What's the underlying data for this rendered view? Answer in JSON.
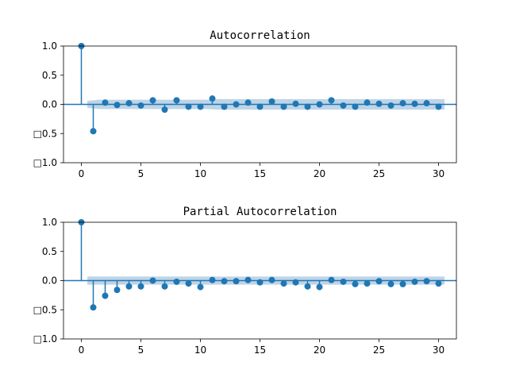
{
  "chart_data": [
    {
      "type": "scatter",
      "style": "stem",
      "title": "Autocorrelation",
      "xlim": [
        -1.5,
        31.5
      ],
      "ylim": [
        -1.0,
        1.0
      ],
      "x_ticks": [
        0,
        5,
        10,
        15,
        20,
        25,
        30
      ],
      "y_ticks": [
        1.0,
        0.5,
        0.0,
        -0.5,
        -1.0
      ],
      "x_tick_labels": [
        "0",
        "5",
        "10",
        "15",
        "20",
        "25",
        "30"
      ],
      "y_tick_labels": [
        "1.0",
        "0.5",
        "0.0",
        "□0.5",
        "□1.0"
      ],
      "lags": [
        0,
        1,
        2,
        3,
        4,
        5,
        6,
        7,
        8,
        9,
        10,
        11,
        12,
        13,
        14,
        15,
        16,
        17,
        18,
        19,
        20,
        21,
        22,
        23,
        24,
        25,
        26,
        27,
        28,
        29,
        30
      ],
      "values": [
        1.0,
        -0.46,
        0.03,
        -0.01,
        0.02,
        -0.02,
        0.07,
        -0.09,
        0.07,
        -0.04,
        -0.04,
        0.1,
        -0.04,
        0.0,
        0.03,
        -0.04,
        0.05,
        -0.04,
        0.01,
        -0.04,
        0.0,
        0.07,
        -0.02,
        -0.04,
        0.03,
        0.01,
        -0.02,
        0.02,
        0.01,
        0.02,
        -0.04
      ],
      "confidence_band": {
        "x": [
          0.5,
          1.5,
          2.5,
          3.5,
          4.5,
          5.5,
          6.5,
          7.5,
          8.5,
          9.5,
          10.5,
          11.5,
          12.5,
          13.5,
          14.5,
          15.5,
          16.5,
          17.5,
          18.5,
          19.5,
          20.5,
          21.5,
          22.5,
          23.5,
          24.5,
          25.5,
          26.5,
          27.5,
          28.5,
          29.5,
          30.5
        ],
        "upper": [
          0.06,
          0.08,
          0.08,
          0.08,
          0.08,
          0.08,
          0.08,
          0.08,
          0.08,
          0.08,
          0.08,
          0.09,
          0.09,
          0.09,
          0.09,
          0.09,
          0.09,
          0.09,
          0.09,
          0.09,
          0.09,
          0.09,
          0.09,
          0.09,
          0.09,
          0.09,
          0.09,
          0.09,
          0.09,
          0.09,
          0.09
        ]
      },
      "colors": {
        "marker": "#1f77b4",
        "band": "#b3cde3"
      }
    },
    {
      "type": "scatter",
      "style": "stem",
      "title": "Partial Autocorrelation",
      "xlim": [
        -1.5,
        31.5
      ],
      "ylim": [
        -1.0,
        1.0
      ],
      "x_ticks": [
        0,
        5,
        10,
        15,
        20,
        25,
        30
      ],
      "y_ticks": [
        1.0,
        0.5,
        0.0,
        -0.5,
        -1.0
      ],
      "x_tick_labels": [
        "0",
        "5",
        "10",
        "15",
        "20",
        "25",
        "30"
      ],
      "y_tick_labels": [
        "1.0",
        "0.5",
        "0.0",
        "□0.5",
        "□1.0"
      ],
      "lags": [
        0,
        1,
        2,
        3,
        4,
        5,
        6,
        7,
        8,
        9,
        10,
        11,
        12,
        13,
        14,
        15,
        16,
        17,
        18,
        19,
        20,
        21,
        22,
        23,
        24,
        25,
        26,
        27,
        28,
        29,
        30
      ],
      "values": [
        1.0,
        -0.46,
        -0.26,
        -0.16,
        -0.1,
        -0.1,
        0.0,
        -0.1,
        -0.02,
        -0.05,
        -0.11,
        0.01,
        -0.01,
        -0.01,
        0.01,
        -0.03,
        0.01,
        -0.05,
        -0.03,
        -0.1,
        -0.11,
        0.01,
        -0.02,
        -0.06,
        -0.05,
        -0.01,
        -0.06,
        -0.06,
        -0.02,
        -0.01,
        -0.05
      ],
      "confidence_band": {
        "x": [
          0.5,
          1.5,
          2.5,
          3.5,
          4.5,
          5.5,
          6.5,
          7.5,
          8.5,
          9.5,
          10.5,
          11.5,
          12.5,
          13.5,
          14.5,
          15.5,
          16.5,
          17.5,
          18.5,
          19.5,
          20.5,
          21.5,
          22.5,
          23.5,
          24.5,
          25.5,
          26.5,
          27.5,
          28.5,
          29.5,
          30.5
        ],
        "upper": [
          0.07,
          0.07,
          0.07,
          0.07,
          0.07,
          0.07,
          0.07,
          0.07,
          0.07,
          0.07,
          0.07,
          0.07,
          0.07,
          0.07,
          0.07,
          0.07,
          0.07,
          0.07,
          0.07,
          0.07,
          0.07,
          0.07,
          0.07,
          0.07,
          0.07,
          0.07,
          0.07,
          0.07,
          0.07,
          0.07,
          0.07
        ]
      },
      "colors": {
        "marker": "#1f77b4",
        "band": "#b3cde3"
      }
    }
  ]
}
